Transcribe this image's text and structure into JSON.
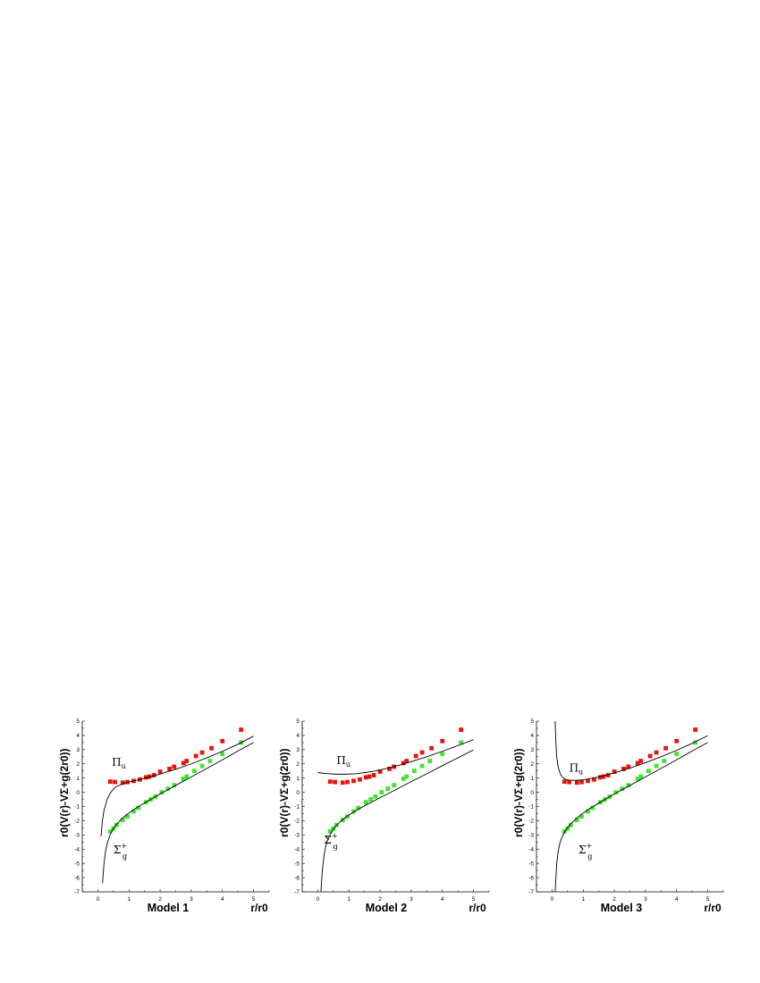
{
  "chart_data": [
    {
      "type": "scatter",
      "title": "Model  1",
      "xlabel": "r/r0",
      "ylabel": "r0(V(r)-VΣ+g(2r0))",
      "xlim": [
        -0.5,
        5.5
      ],
      "ylim": [
        -7,
        5
      ],
      "xticks": [
        "0",
        "1",
        "2",
        "3",
        "4",
        "5"
      ],
      "yticks": [
        "-7",
        "-6",
        "-5",
        "-4",
        "-3",
        "-2",
        "-1",
        "0",
        "1",
        "2",
        "3",
        "4",
        "5"
      ],
      "series": [
        {
          "name": "Πu",
          "kind": "points",
          "color": "#e8140c",
          "x": [
            0.4,
            0.55,
            0.8,
            0.95,
            1.15,
            1.35,
            1.55,
            1.65,
            1.8,
            2.0,
            2.3,
            2.45,
            2.75,
            2.85,
            3.15,
            3.35,
            3.65,
            4.0,
            4.6
          ],
          "y": [
            0.75,
            0.72,
            0.68,
            0.72,
            0.8,
            0.9,
            1.05,
            1.1,
            1.2,
            1.45,
            1.65,
            1.8,
            2.05,
            2.2,
            2.55,
            2.8,
            3.1,
            3.6,
            4.4
          ]
        },
        {
          "name": "Σ+g",
          "kind": "points",
          "color": "#3ee62c",
          "x": [
            0.4,
            0.5,
            0.6,
            0.8,
            0.95,
            1.15,
            1.3,
            1.55,
            1.7,
            1.85,
            2.05,
            2.25,
            2.45,
            2.75,
            2.85,
            3.1,
            3.35,
            3.6,
            4.0,
            4.6
          ],
          "y": [
            -2.75,
            -2.55,
            -2.3,
            -1.95,
            -1.7,
            -1.35,
            -1.1,
            -0.7,
            -0.5,
            -0.3,
            0.0,
            0.25,
            0.5,
            0.95,
            1.1,
            1.5,
            1.85,
            2.2,
            2.7,
            3.5
          ]
        },
        {
          "name": "",
          "kind": "curve",
          "color": "#000000",
          "x": [
            0.1,
            0.15,
            0.2,
            0.3,
            0.4,
            0.5,
            0.6,
            0.8,
            1.0,
            1.2,
            1.5,
            2.0,
            2.5,
            3.0,
            3.5,
            4.0,
            4.5,
            5.0
          ],
          "y": [
            -3.1,
            -1.95,
            -1.25,
            -0.5,
            -0.05,
            0.22,
            0.4,
            0.6,
            0.72,
            0.82,
            0.98,
            1.28,
            1.62,
            2.0,
            2.42,
            2.88,
            3.38,
            3.95
          ]
        },
        {
          "name": "",
          "kind": "curve",
          "color": "#000000",
          "x": [
            0.15,
            0.2,
            0.25,
            0.3,
            0.4,
            0.5,
            0.6,
            0.8,
            1.0,
            1.2,
            1.5,
            2.0,
            2.5,
            3.0,
            3.5,
            4.0,
            4.5,
            5.0
          ],
          "y": [
            -6.4,
            -4.95,
            -4.1,
            -3.6,
            -2.95,
            -2.55,
            -2.25,
            -1.8,
            -1.45,
            -1.15,
            -0.75,
            -0.12,
            0.48,
            1.08,
            1.68,
            2.28,
            2.9,
            3.5
          ]
        }
      ],
      "annotations": [
        {
          "text": "Π",
          "sub": "u",
          "sup": "",
          "x": 0.45,
          "y": 1.85
        },
        {
          "text": "Σ",
          "sub": "g",
          "sup": "+",
          "x": 0.5,
          "y": -4.3
        }
      ]
    },
    {
      "type": "scatter",
      "title": "Model  2",
      "xlabel": "r/r0",
      "ylabel": "r0(V(r)-VΣ+g(2r0))",
      "xlim": [
        -0.5,
        5.5
      ],
      "ylim": [
        -7,
        5
      ],
      "xticks": [
        "0",
        "1",
        "2",
        "3",
        "4",
        "5"
      ],
      "yticks": [
        "-7",
        "-6",
        "-5",
        "-4",
        "-3",
        "-2",
        "-1",
        "0",
        "1",
        "2",
        "3",
        "4",
        "5"
      ],
      "series": [
        {
          "name": "Πu",
          "kind": "points",
          "color": "#e8140c",
          "x": [
            0.4,
            0.55,
            0.8,
            0.95,
            1.15,
            1.35,
            1.55,
            1.65,
            1.8,
            2.0,
            2.3,
            2.45,
            2.75,
            2.85,
            3.15,
            3.35,
            3.65,
            4.0,
            4.6
          ],
          "y": [
            0.75,
            0.72,
            0.68,
            0.72,
            0.8,
            0.9,
            1.05,
            1.1,
            1.2,
            1.45,
            1.65,
            1.8,
            2.05,
            2.2,
            2.55,
            2.8,
            3.1,
            3.6,
            4.4
          ]
        },
        {
          "name": "Σ+g",
          "kind": "points",
          "color": "#3ee62c",
          "x": [
            0.4,
            0.5,
            0.6,
            0.8,
            0.95,
            1.15,
            1.3,
            1.55,
            1.7,
            1.85,
            2.05,
            2.25,
            2.45,
            2.75,
            2.85,
            3.1,
            3.35,
            3.6,
            4.0,
            4.6
          ],
          "y": [
            -2.75,
            -2.55,
            -2.3,
            -1.95,
            -1.7,
            -1.35,
            -1.1,
            -0.7,
            -0.5,
            -0.3,
            0.0,
            0.25,
            0.5,
            0.95,
            1.1,
            1.5,
            1.85,
            2.2,
            2.7,
            3.5
          ]
        },
        {
          "name": "",
          "kind": "curve",
          "color": "#000000",
          "x": [
            0.0,
            0.3,
            0.6,
            0.9,
            1.2,
            1.5,
            1.8,
            2.1,
            2.4,
            2.7,
            3.0,
            3.5,
            4.0,
            4.5,
            5.0
          ],
          "y": [
            1.38,
            1.31,
            1.27,
            1.27,
            1.3,
            1.38,
            1.48,
            1.62,
            1.78,
            1.96,
            2.15,
            2.5,
            2.88,
            3.28,
            3.7
          ]
        },
        {
          "name": "",
          "kind": "curve",
          "color": "#000000",
          "x": [
            0.1,
            0.15,
            0.2,
            0.25,
            0.3,
            0.4,
            0.5,
            0.6,
            0.8,
            1.0,
            1.2,
            1.5,
            2.0,
            2.5,
            3.0,
            3.5,
            4.0,
            4.5,
            5.0
          ],
          "y": [
            -7.0,
            -5.4,
            -4.45,
            -3.85,
            -3.45,
            -2.95,
            -2.6,
            -2.32,
            -1.92,
            -1.6,
            -1.32,
            -0.95,
            -0.38,
            0.18,
            0.75,
            1.3,
            1.87,
            2.42,
            2.98
          ]
        }
      ],
      "annotations": [
        {
          "text": "Π",
          "sub": "u",
          "sup": "",
          "x": 0.6,
          "y": 2.0
        },
        {
          "text": "Σ",
          "sub": "g",
          "sup": "+",
          "x": 0.2,
          "y": -3.6
        }
      ]
    },
    {
      "type": "scatter",
      "title": "Model  3",
      "xlabel": "r/r0",
      "ylabel": "r0(V(r)-VΣ+g(2r0))",
      "xlim": [
        -0.5,
        5.5
      ],
      "ylim": [
        -7,
        5
      ],
      "xticks": [
        "0",
        "1",
        "2",
        "3",
        "4",
        "5"
      ],
      "yticks": [
        "-7",
        "-6",
        "-5",
        "-4",
        "-3",
        "-2",
        "-1",
        "0",
        "1",
        "2",
        "3",
        "4",
        "5"
      ],
      "series": [
        {
          "name": "Πu",
          "kind": "points",
          "color": "#e8140c",
          "x": [
            0.4,
            0.55,
            0.8,
            0.95,
            1.15,
            1.35,
            1.55,
            1.65,
            1.8,
            2.0,
            2.3,
            2.45,
            2.75,
            2.85,
            3.15,
            3.35,
            3.65,
            4.0,
            4.6
          ],
          "y": [
            0.75,
            0.72,
            0.68,
            0.72,
            0.8,
            0.9,
            1.05,
            1.1,
            1.2,
            1.45,
            1.65,
            1.8,
            2.05,
            2.2,
            2.55,
            2.8,
            3.1,
            3.6,
            4.4
          ]
        },
        {
          "name": "Σ+g",
          "kind": "points",
          "color": "#3ee62c",
          "x": [
            0.4,
            0.5,
            0.6,
            0.8,
            0.95,
            1.15,
            1.3,
            1.55,
            1.7,
            1.85,
            2.05,
            2.25,
            2.45,
            2.75,
            2.85,
            3.1,
            3.35,
            3.6,
            4.0,
            4.6
          ],
          "y": [
            -2.75,
            -2.55,
            -2.3,
            -1.95,
            -1.7,
            -1.35,
            -1.1,
            -0.7,
            -0.5,
            -0.3,
            0.0,
            0.25,
            0.5,
            0.95,
            1.1,
            1.5,
            1.85,
            2.2,
            2.7,
            3.5
          ]
        },
        {
          "name": "",
          "kind": "curve",
          "color": "#000000",
          "x": [
            0.1,
            0.12,
            0.15,
            0.2,
            0.25,
            0.3,
            0.4,
            0.5,
            0.6,
            0.8,
            1.0,
            1.2,
            1.5,
            2.0,
            2.5,
            3.0,
            3.5,
            4.0,
            4.5,
            5.0
          ],
          "y": [
            5.0,
            3.6,
            2.5,
            1.75,
            1.38,
            1.15,
            0.95,
            0.87,
            0.84,
            0.84,
            0.88,
            0.95,
            1.08,
            1.36,
            1.7,
            2.08,
            2.5,
            2.95,
            3.44,
            3.98
          ]
        },
        {
          "name": "",
          "kind": "curve",
          "color": "#000000",
          "x": [
            0.1,
            0.15,
            0.2,
            0.25,
            0.3,
            0.4,
            0.5,
            0.6,
            0.8,
            1.0,
            1.2,
            1.5,
            2.0,
            2.5,
            3.0,
            3.5,
            4.0,
            4.5,
            5.0
          ],
          "y": [
            -7.0,
            -5.0,
            -4.1,
            -3.6,
            -3.25,
            -2.8,
            -2.48,
            -2.22,
            -1.8,
            -1.46,
            -1.16,
            -0.76,
            -0.13,
            0.48,
            1.08,
            1.68,
            2.28,
            2.9,
            3.5
          ]
        }
      ],
      "annotations": [
        {
          "text": "Π",
          "sub": "u",
          "sup": "",
          "x": 0.55,
          "y": 1.45
        },
        {
          "text": "Σ",
          "sub": "g",
          "sup": "+",
          "x": 0.85,
          "y": -4.3
        }
      ]
    }
  ]
}
